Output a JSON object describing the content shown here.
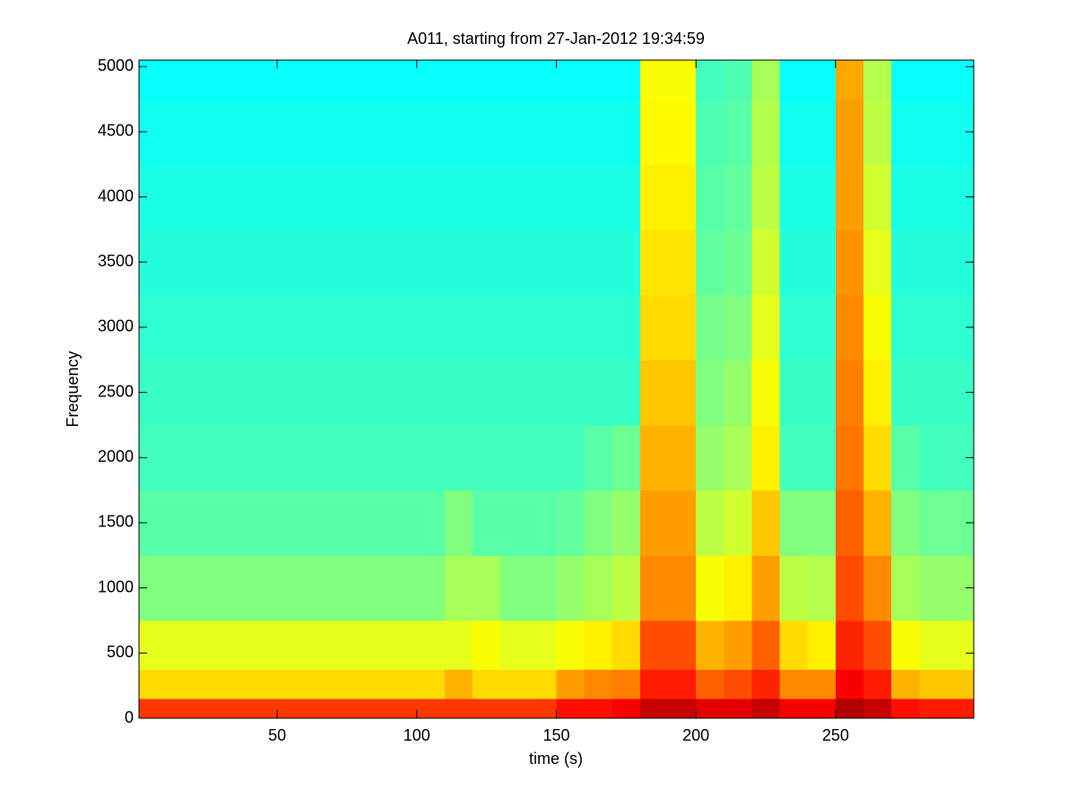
{
  "chart_data": {
    "type": "heatmap",
    "title": "A011, starting from 27-Jan-2012 19:34:59",
    "xlabel": "time (s)",
    "ylabel": "Frequency",
    "colormap": "jet",
    "clim": [
      0,
      1
    ],
    "xlim": [
      0.5,
      299.5
    ],
    "xticks": [
      50,
      100,
      150,
      200,
      250
    ],
    "ylim": [
      0,
      5050
    ],
    "yticks": [
      0,
      500,
      1000,
      1500,
      2000,
      2500,
      3000,
      3500,
      4000,
      4500,
      5000
    ],
    "x": [
      5,
      15,
      25,
      35,
      45,
      55,
      65,
      75,
      85,
      95,
      105,
      115,
      125,
      135,
      145,
      155,
      165,
      175,
      185,
      195,
      205,
      215,
      225,
      235,
      245,
      255,
      265,
      275,
      285,
      295
    ],
    "y": [
      50,
      250,
      500,
      1000,
      1500,
      2000,
      2500,
      3000,
      3500,
      4000,
      4500,
      5000
    ],
    "z": [
      [
        0.82,
        0.82,
        0.82,
        0.82,
        0.82,
        0.82,
        0.82,
        0.82,
        0.82,
        0.82,
        0.82,
        0.82,
        0.82,
        0.82,
        0.82,
        0.86,
        0.86,
        0.88,
        0.93,
        0.93,
        0.9,
        0.9,
        0.93,
        0.88,
        0.88,
        0.95,
        0.93,
        0.86,
        0.85,
        0.85
      ],
      [
        0.66,
        0.66,
        0.66,
        0.66,
        0.66,
        0.66,
        0.66,
        0.66,
        0.66,
        0.66,
        0.66,
        0.7,
        0.66,
        0.66,
        0.66,
        0.72,
        0.74,
        0.75,
        0.85,
        0.85,
        0.78,
        0.8,
        0.84,
        0.74,
        0.74,
        0.88,
        0.85,
        0.7,
        0.68,
        0.68
      ],
      [
        0.6,
        0.6,
        0.6,
        0.6,
        0.6,
        0.6,
        0.6,
        0.6,
        0.6,
        0.6,
        0.6,
        0.6,
        0.62,
        0.6,
        0.6,
        0.62,
        0.64,
        0.66,
        0.8,
        0.8,
        0.7,
        0.72,
        0.78,
        0.66,
        0.64,
        0.84,
        0.8,
        0.62,
        0.6,
        0.6
      ],
      [
        0.5,
        0.5,
        0.5,
        0.5,
        0.5,
        0.5,
        0.5,
        0.5,
        0.5,
        0.5,
        0.5,
        0.54,
        0.54,
        0.5,
        0.5,
        0.52,
        0.54,
        0.56,
        0.74,
        0.74,
        0.62,
        0.64,
        0.72,
        0.56,
        0.55,
        0.8,
        0.74,
        0.54,
        0.52,
        0.52
      ],
      [
        0.46,
        0.46,
        0.46,
        0.46,
        0.46,
        0.46,
        0.46,
        0.46,
        0.46,
        0.46,
        0.46,
        0.5,
        0.46,
        0.46,
        0.46,
        0.47,
        0.5,
        0.52,
        0.72,
        0.72,
        0.56,
        0.58,
        0.68,
        0.5,
        0.5,
        0.78,
        0.7,
        0.5,
        0.48,
        0.48
      ],
      [
        0.44,
        0.44,
        0.44,
        0.44,
        0.44,
        0.44,
        0.44,
        0.44,
        0.44,
        0.44,
        0.44,
        0.44,
        0.44,
        0.44,
        0.44,
        0.44,
        0.46,
        0.48,
        0.7,
        0.7,
        0.52,
        0.54,
        0.64,
        0.44,
        0.44,
        0.76,
        0.66,
        0.46,
        0.44,
        0.44
      ],
      [
        0.43,
        0.43,
        0.43,
        0.43,
        0.43,
        0.43,
        0.43,
        0.43,
        0.43,
        0.43,
        0.43,
        0.43,
        0.43,
        0.43,
        0.43,
        0.43,
        0.43,
        0.43,
        0.68,
        0.68,
        0.5,
        0.52,
        0.62,
        0.43,
        0.43,
        0.75,
        0.64,
        0.43,
        0.43,
        0.43
      ],
      [
        0.42,
        0.42,
        0.42,
        0.42,
        0.42,
        0.42,
        0.42,
        0.42,
        0.42,
        0.42,
        0.42,
        0.42,
        0.42,
        0.42,
        0.42,
        0.42,
        0.42,
        0.42,
        0.66,
        0.66,
        0.49,
        0.5,
        0.6,
        0.42,
        0.42,
        0.74,
        0.62,
        0.42,
        0.42,
        0.42
      ],
      [
        0.41,
        0.41,
        0.41,
        0.41,
        0.41,
        0.41,
        0.41,
        0.41,
        0.41,
        0.41,
        0.41,
        0.41,
        0.41,
        0.41,
        0.41,
        0.41,
        0.41,
        0.41,
        0.65,
        0.65,
        0.47,
        0.48,
        0.58,
        0.41,
        0.41,
        0.73,
        0.6,
        0.41,
        0.41,
        0.41
      ],
      [
        0.4,
        0.4,
        0.4,
        0.4,
        0.4,
        0.4,
        0.4,
        0.4,
        0.4,
        0.4,
        0.4,
        0.4,
        0.4,
        0.4,
        0.4,
        0.4,
        0.4,
        0.4,
        0.64,
        0.64,
        0.46,
        0.47,
        0.56,
        0.4,
        0.4,
        0.72,
        0.58,
        0.4,
        0.4,
        0.4
      ],
      [
        0.39,
        0.39,
        0.39,
        0.39,
        0.39,
        0.39,
        0.39,
        0.39,
        0.39,
        0.39,
        0.39,
        0.39,
        0.39,
        0.39,
        0.39,
        0.39,
        0.39,
        0.39,
        0.63,
        0.63,
        0.45,
        0.46,
        0.55,
        0.39,
        0.39,
        0.72,
        0.56,
        0.39,
        0.39,
        0.39
      ],
      [
        0.38,
        0.38,
        0.38,
        0.38,
        0.38,
        0.38,
        0.38,
        0.38,
        0.38,
        0.38,
        0.38,
        0.38,
        0.38,
        0.38,
        0.38,
        0.38,
        0.38,
        0.38,
        0.62,
        0.62,
        0.44,
        0.45,
        0.54,
        0.38,
        0.38,
        0.71,
        0.55,
        0.38,
        0.38,
        0.38
      ]
    ]
  }
}
